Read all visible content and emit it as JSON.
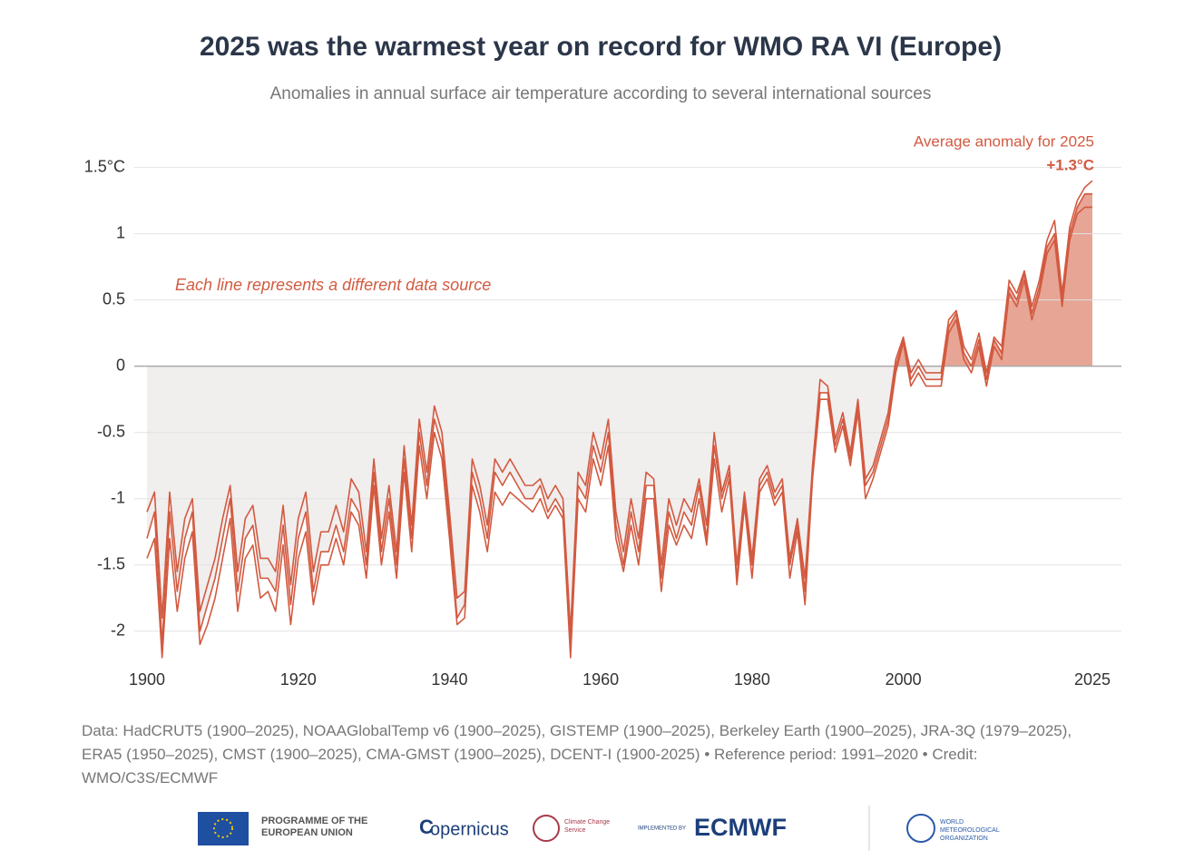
{
  "chart_data": {
    "type": "line",
    "title": "2025 was the warmest year on record for WMO RA VI (Europe)",
    "subtitle": "Anomalies in annual surface air temperature according to several international sources",
    "annotation": "Each line represents a different data source",
    "highlight": {
      "label": "Average anomaly for 2025",
      "value": 1.3,
      "value_label": "+1.3°C"
    },
    "source": "Data: HadCRUT5 (1900–2025), NOAAGlobalTemp v6 (1900–2025), GISTEMP (1900–2025), Berkeley Earth (1900–2025), JRA-3Q (1979–2025), ERA5 (1950–2025), CMST (1900–2025), CMA-GMST (1900–2025), DCENT-I (1900-2025) • Reference period: 1991–2020 • Credit: WMO/C3S/ECMWF",
    "x": [
      1900,
      1901,
      1902,
      1903,
      1904,
      1905,
      1906,
      1907,
      1908,
      1909,
      1910,
      1911,
      1912,
      1913,
      1914,
      1915,
      1916,
      1917,
      1918,
      1919,
      1920,
      1921,
      1922,
      1923,
      1924,
      1925,
      1926,
      1927,
      1928,
      1929,
      1930,
      1931,
      1932,
      1933,
      1934,
      1935,
      1936,
      1937,
      1938,
      1939,
      1940,
      1941,
      1942,
      1943,
      1944,
      1945,
      1946,
      1947,
      1948,
      1949,
      1950,
      1951,
      1952,
      1953,
      1954,
      1955,
      1956,
      1957,
      1958,
      1959,
      1960,
      1961,
      1962,
      1963,
      1964,
      1965,
      1966,
      1967,
      1968,
      1969,
      1970,
      1971,
      1972,
      1973,
      1974,
      1975,
      1976,
      1977,
      1978,
      1979,
      1980,
      1981,
      1982,
      1983,
      1984,
      1985,
      1986,
      1987,
      1988,
      1989,
      1990,
      1991,
      1992,
      1993,
      1994,
      1995,
      1996,
      1997,
      1998,
      1999,
      2000,
      2001,
      2002,
      2003,
      2004,
      2005,
      2006,
      2007,
      2008,
      2009,
      2010,
      2011,
      2012,
      2013,
      2014,
      2015,
      2016,
      2017,
      2018,
      2019,
      2020,
      2021,
      2022,
      2023,
      2024,
      2025
    ],
    "series": [
      {
        "color": "#d25a40",
        "values": [
          -1.3,
          -1.1,
          -2.1,
          -1.1,
          -1.7,
          -1.3,
          -1.1,
          -2.0,
          -1.8,
          -1.6,
          -1.3,
          -1.0,
          -1.7,
          -1.3,
          -1.2,
          -1.6,
          -1.6,
          -1.7,
          -1.2,
          -1.8,
          -1.3,
          -1.1,
          -1.7,
          -1.4,
          -1.4,
          -1.2,
          -1.4,
          -1.0,
          -1.1,
          -1.5,
          -0.8,
          -1.4,
          -1.0,
          -1.5,
          -0.7,
          -1.3,
          -0.5,
          -0.9,
          -0.4,
          -0.6,
          -1.2,
          -1.9,
          -1.8,
          -0.8,
          -1.0,
          -1.3,
          -0.8,
          -0.9,
          -0.8,
          -0.9,
          -1.0,
          -1.0,
          -0.9,
          -1.1,
          -1.0,
          -1.1,
          -2.1,
          -0.9,
          -1.0,
          -0.6,
          -0.8,
          -0.5,
          -1.2,
          -1.5,
          -1.1,
          -1.4,
          -0.9,
          -0.9,
          -1.6,
          -1.1,
          -1.3,
          -1.1,
          -1.2,
          -0.9,
          -1.3,
          -0.6,
          -1.0,
          -0.8,
          -1.6,
          -1.0,
          -1.5,
          -0.9,
          -0.8,
          -1.0,
          -0.9,
          -1.5,
          -1.2,
          -1.7,
          -0.8,
          -0.2,
          -0.2,
          -0.6,
          -0.4,
          -0.7,
          -0.3,
          -0.9,
          -0.8,
          -0.6,
          -0.4,
          0.0,
          0.2,
          -0.1,
          0.0,
          -0.1,
          -0.1,
          -0.1,
          0.3,
          0.4,
          0.1,
          0.0,
          0.2,
          -0.1,
          0.2,
          0.1,
          0.6,
          0.5,
          0.7,
          0.4,
          0.6,
          0.9,
          1.0,
          0.5,
          1.0,
          1.2,
          1.3,
          1.3
        ]
      },
      {
        "color": "#d25a40",
        "values": [
          -1.1,
          -0.95,
          -1.9,
          -0.95,
          -1.55,
          -1.15,
          -1.0,
          -1.85,
          -1.65,
          -1.45,
          -1.15,
          -0.9,
          -1.55,
          -1.15,
          -1.05,
          -1.45,
          -1.45,
          -1.55,
          -1.05,
          -1.65,
          -1.15,
          -0.95,
          -1.55,
          -1.25,
          -1.25,
          -1.05,
          -1.25,
          -0.85,
          -0.95,
          -1.4,
          -0.7,
          -1.3,
          -0.9,
          -1.4,
          -0.6,
          -1.2,
          -0.4,
          -0.8,
          -0.3,
          -0.5,
          -1.1,
          -1.75,
          -1.7,
          -0.7,
          -0.9,
          -1.2,
          -0.7,
          -0.8,
          -0.7,
          -0.8,
          -0.9,
          -0.9,
          -0.85,
          -1.0,
          -0.9,
          -1.0,
          -2.0,
          -0.8,
          -0.9,
          -0.5,
          -0.7,
          -0.4,
          -1.1,
          -1.4,
          -1.0,
          -1.3,
          -0.8,
          -0.85,
          -1.5,
          -1.0,
          -1.2,
          -1.0,
          -1.1,
          -0.85,
          -1.2,
          -0.5,
          -0.95,
          -0.75,
          -1.5,
          -0.95,
          -1.45,
          -0.85,
          -0.75,
          -0.95,
          -0.85,
          -1.45,
          -1.15,
          -1.6,
          -0.75,
          -0.1,
          -0.15,
          -0.55,
          -0.35,
          -0.65,
          -0.25,
          -0.85,
          -0.75,
          -0.55,
          -0.35,
          0.05,
          0.22,
          -0.05,
          0.05,
          -0.05,
          -0.05,
          -0.05,
          0.35,
          0.42,
          0.15,
          0.05,
          0.25,
          -0.05,
          0.22,
          0.15,
          0.65,
          0.55,
          0.72,
          0.45,
          0.65,
          0.95,
          1.1,
          0.55,
          1.05,
          1.25,
          1.35,
          1.4
        ]
      },
      {
        "color": "#d25a40",
        "values": [
          -1.45,
          -1.3,
          -2.2,
          -1.3,
          -1.85,
          -1.45,
          -1.25,
          -2.1,
          -1.95,
          -1.75,
          -1.45,
          -1.15,
          -1.85,
          -1.45,
          -1.35,
          -1.75,
          -1.7,
          -1.85,
          -1.35,
          -1.95,
          -1.45,
          -1.25,
          -1.8,
          -1.5,
          -1.5,
          -1.3,
          -1.5,
          -1.1,
          -1.2,
          -1.6,
          -0.9,
          -1.5,
          -1.1,
          -1.6,
          -0.8,
          -1.4,
          -0.6,
          -1.0,
          -0.5,
          -0.7,
          -1.3,
          -1.95,
          -1.9,
          -0.9,
          -1.1,
          -1.4,
          -0.95,
          -1.05,
          -0.95,
          -1.0,
          -1.05,
          -1.1,
          -1.0,
          -1.15,
          -1.05,
          -1.15,
          -2.2,
          -1.0,
          -1.1,
          -0.7,
          -0.9,
          -0.6,
          -1.3,
          -1.55,
          -1.2,
          -1.5,
          -1.0,
          -1.0,
          -1.7,
          -1.2,
          -1.35,
          -1.2,
          -1.3,
          -1.0,
          -1.35,
          -0.7,
          -1.1,
          -0.85,
          -1.65,
          -1.05,
          -1.6,
          -0.95,
          -0.85,
          -1.05,
          -0.95,
          -1.6,
          -1.25,
          -1.8,
          -0.85,
          -0.25,
          -0.25,
          -0.65,
          -0.45,
          -0.75,
          -0.35,
          -1.0,
          -0.85,
          -0.65,
          -0.45,
          -0.05,
          0.18,
          -0.15,
          -0.05,
          -0.15,
          -0.15,
          -0.15,
          0.25,
          0.35,
          0.05,
          -0.05,
          0.15,
          -0.15,
          0.15,
          0.05,
          0.55,
          0.45,
          0.65,
          0.35,
          0.55,
          0.85,
          0.95,
          0.45,
          0.95,
          1.15,
          1.2,
          1.2
        ]
      }
    ],
    "xlim": [
      1900,
      2025
    ],
    "xticks": [
      1900,
      1920,
      1940,
      1960,
      1980,
      2000,
      2025
    ],
    "ylim": [
      -2.2,
      1.6
    ],
    "yticks": [
      -2,
      -1.5,
      -1,
      -0.5,
      0,
      0.5,
      1,
      {
        "value": 1.5,
        "label": "1.5°C"
      }
    ],
    "grid": true
  },
  "logos": {
    "eu": "PROGRAMME OF THE EUROPEAN UNION",
    "copernicus": "opernicus",
    "c3s": "Climate Change Service",
    "implemented": "IMPLEMENTED BY",
    "ecmwf": "ECMWF",
    "wmo": "WORLD METEOROLOGICAL ORGANIZATION"
  }
}
